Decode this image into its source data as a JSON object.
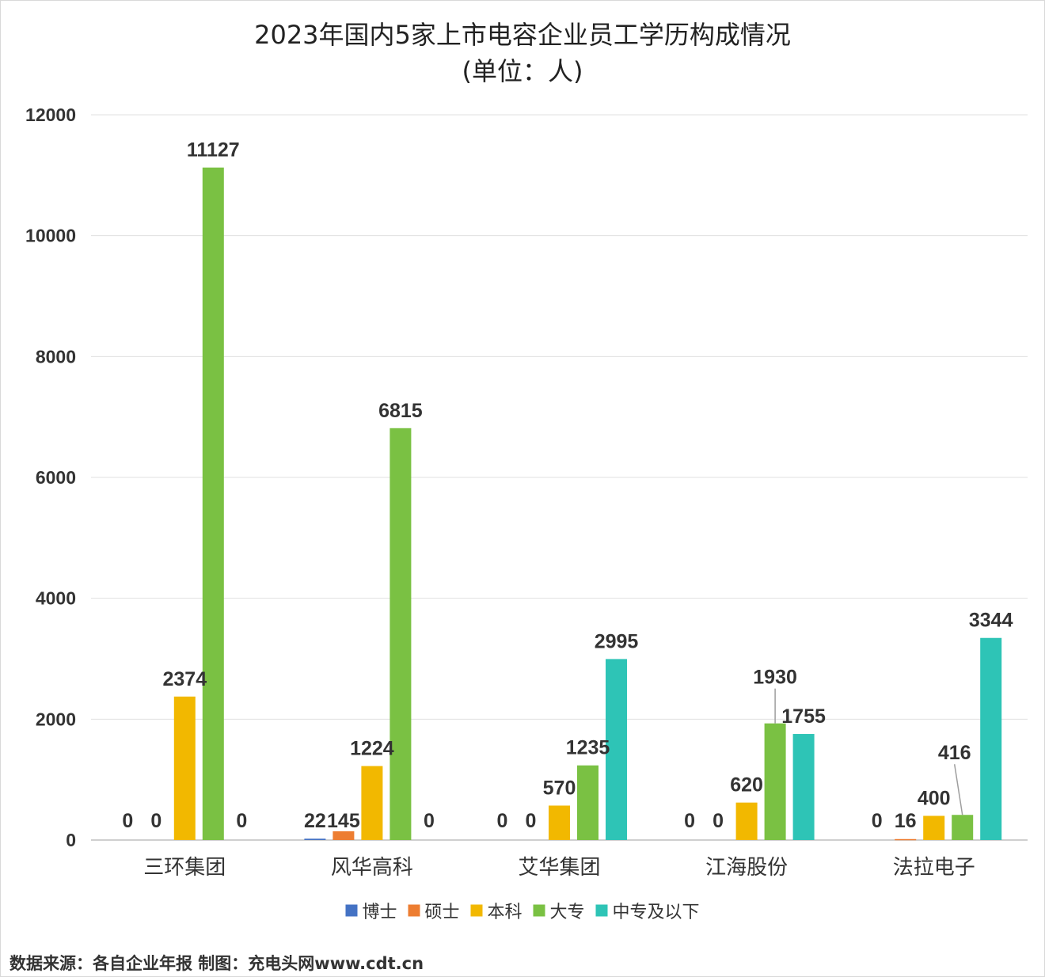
{
  "chart_data": {
    "type": "bar",
    "title": "2023年国内5家上市电容企业员工学历构成情况",
    "subtitle": "(单位：人)",
    "categories": [
      "三环集团",
      "风华高科",
      "艾华集团",
      "江海股份",
      "法拉电子"
    ],
    "series": [
      {
        "name": "博士",
        "color": "#4472C4",
        "values": [
          0,
          22,
          0,
          0,
          0
        ]
      },
      {
        "name": "硕士",
        "color": "#ED7D31",
        "values": [
          0,
          145,
          0,
          0,
          16
        ]
      },
      {
        "name": "本科",
        "color": "#F2B800",
        "values": [
          2374,
          1224,
          570,
          620,
          400
        ]
      },
      {
        "name": "大专",
        "color": "#7AC143",
        "values": [
          11127,
          6815,
          1235,
          1930,
          416
        ]
      },
      {
        "name": "中专及以下",
        "color": "#2EC4B6",
        "values": [
          0,
          0,
          2995,
          1755,
          3344
        ]
      }
    ],
    "ylim": [
      0,
      12000
    ],
    "yticks": [
      "0",
      "2000",
      "4000",
      "6000",
      "8000",
      "10000",
      "12000"
    ],
    "grid": true,
    "legend_position": "bottom"
  },
  "source_text": "数据来源：各自企业年报  制图：充电头网www.cdt.cn"
}
